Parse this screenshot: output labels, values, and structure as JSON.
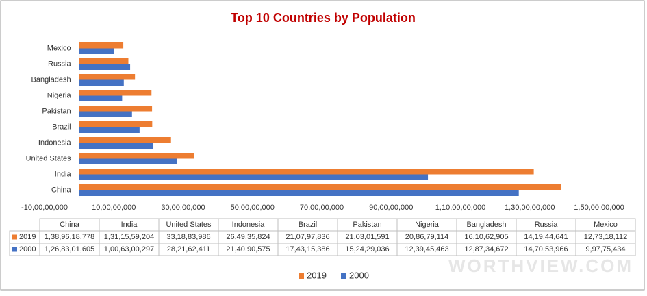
{
  "chart_data": {
    "type": "bar",
    "orientation": "horizontal",
    "title": "Top 10 Countries by Population",
    "categories": [
      "China",
      "India",
      "United States",
      "Indonesia",
      "Brazil",
      "Pakistan",
      "Nigeria",
      "Bangladesh",
      "Russia",
      "Mexico"
    ],
    "series": [
      {
        "name": "2019",
        "color": "#ed7d31",
        "values": [
          1389618778,
          1311559204,
          331883986,
          264935824,
          210797836,
          210301591,
          208679114,
          161062905,
          141944641,
          127318112
        ],
        "value_labels": [
          "1,38,96,18,778",
          "1,31,15,59,204",
          "33,18,83,986",
          "26,49,35,824",
          "21,07,97,836",
          "21,03,01,591",
          "20,86,79,114",
          "16,10,62,905",
          "14,19,44,641",
          "12,73,18,112"
        ]
      },
      {
        "name": "2000",
        "color": "#4472c4",
        "values": [
          1268301605,
          1006300297,
          282162411,
          214090575,
          174315386,
          152429036,
          123945463,
          128734672,
          147053966,
          99775434
        ],
        "value_labels": [
          "1,26,83,01,605",
          "1,00,63,00,297",
          "28,21,62,411",
          "21,40,90,575",
          "17,43,15,386",
          "15,24,29,036",
          "12,39,45,463",
          "12,87,34,672",
          "14,70,53,966",
          "9,97,75,434"
        ]
      }
    ],
    "xlim": [
      -100000000,
      1500000000
    ],
    "xticks": [
      {
        "value": -100000000,
        "label": "-10,00,00,000"
      },
      {
        "value": 100000000,
        "label": "10,00,00,000"
      },
      {
        "value": 300000000,
        "label": "30,00,00,000"
      },
      {
        "value": 500000000,
        "label": "50,00,00,000"
      },
      {
        "value": 700000000,
        "label": "70,00,00,000"
      },
      {
        "value": 900000000,
        "label": "90,00,00,000"
      },
      {
        "value": 1100000000,
        "label": "1,10,00,00,000"
      },
      {
        "value": 1300000000,
        "label": "1,30,00,00,000"
      },
      {
        "value": 1500000000,
        "label": "1,50,00,00,000"
      }
    ],
    "legend": "bottom",
    "watermark": "WORTHVIEW.COM"
  }
}
